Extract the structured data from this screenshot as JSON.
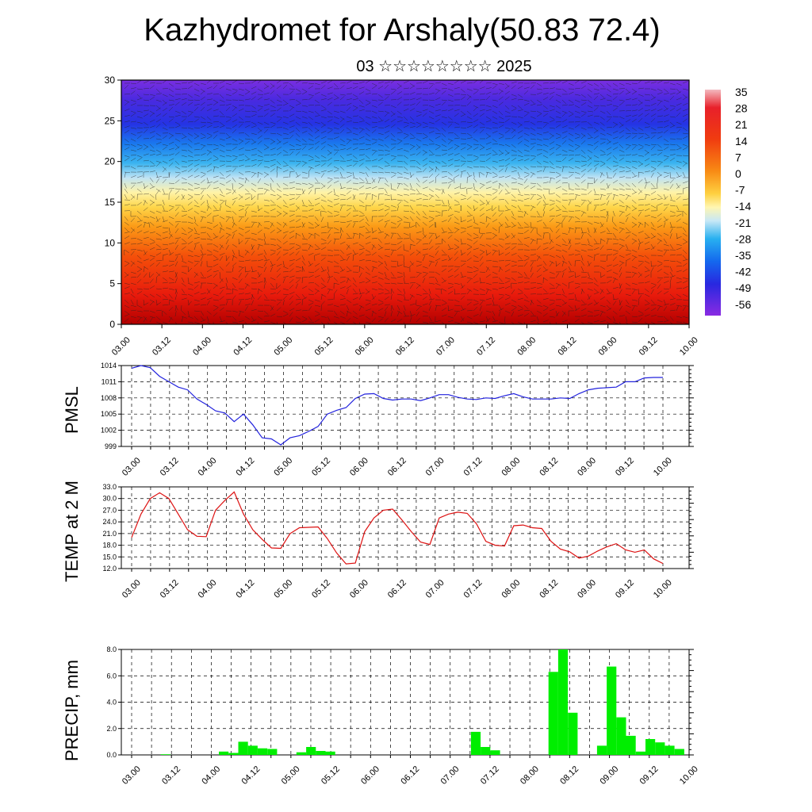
{
  "title": "Kazhydromet for Arshaly(50.83 72.4)",
  "subtitle": "03 ☆☆☆☆☆☆☆☆ 2025",
  "colors": {
    "pmsl_line": "#2222dd",
    "temp_line": "#dd1111",
    "precip_bar": "#00ee00",
    "colorbar_top": "#f3b9bf",
    "colorbar_bottom": "#8a2be2"
  },
  "time_ticks": [
    "03.00",
    "03.12",
    "04.00",
    "04.12",
    "05.00",
    "05.12",
    "06.00",
    "06.12",
    "07.00",
    "07.12",
    "08.00",
    "08.12",
    "09.00",
    "09.12",
    "10.00"
  ],
  "chart_data": [
    {
      "type": "heatmap",
      "title": "",
      "ylabel": "",
      "ylim": [
        0,
        30
      ],
      "yticks": [
        "0",
        "5",
        "10",
        "15",
        "20",
        "25",
        "30"
      ],
      "x": "time_ticks",
      "colorbar": {
        "labels": [
          "35",
          "28",
          "21",
          "14",
          "7",
          "0",
          "-7",
          "-14",
          "-21",
          "-28",
          "-35",
          "-42",
          "-49",
          "-56"
        ],
        "range": [
          -60,
          38
        ]
      },
      "overlay": "wind barbs",
      "description_levels": {
        "surface": "warm (21 to 35)",
        "mid": "0 to -14 near height 15",
        "top": "cold (-49 to -56) near height 25-30"
      }
    },
    {
      "type": "line",
      "ylabel": "PMSL",
      "ylim": [
        999,
        1014
      ],
      "yticks": [
        "999",
        "1002",
        "1005",
        "1008",
        "1011",
        "1014"
      ],
      "series": [
        {
          "values": [
            1013.5,
            1014,
            1013.6,
            1012,
            1011,
            1010,
            1009.5,
            1007.8,
            1006.8,
            1005.6,
            1005.2,
            1003.6,
            1005,
            1003,
            1000.6,
            1000.4,
            999.3,
            1000.6,
            1001,
            1001.8,
            1002.7,
            1005,
            1005.7,
            1006.2,
            1007.9,
            1008.7,
            1008.8,
            1007.9,
            1007.6,
            1007.8,
            1007.8,
            1007.5,
            1008,
            1008.6,
            1008.6,
            1008.1,
            1007.8,
            1007.7,
            1008,
            1007.9,
            1008.4,
            1008.8,
            1008.2,
            1007.8,
            1007.8,
            1007.8,
            1008,
            1007.9,
            1008.8,
            1009.5,
            1009.8,
            1009.9,
            1010,
            1011,
            1011,
            1011.7,
            1011.8,
            1011.8
          ]
        }
      ]
    },
    {
      "type": "line",
      "ylabel": "TEMP at 2 M",
      "ylim": [
        12,
        33
      ],
      "yticks": [
        "12.0",
        "15.0",
        "18.0",
        "21.0",
        "24.0",
        "27.0",
        "30.0",
        "33.0"
      ],
      "series": [
        {
          "values": [
            20,
            26,
            30,
            31.5,
            30,
            26,
            22,
            20.3,
            20.2,
            27,
            29.5,
            31.7,
            26,
            22,
            19.5,
            17.3,
            17.2,
            21,
            22.5,
            22.6,
            22.7,
            19.7,
            16,
            13.2,
            13.4,
            21.5,
            25,
            27,
            27.3,
            24.5,
            21.5,
            18.8,
            18.2,
            25,
            26,
            26.5,
            26.2,
            23.5,
            19,
            18,
            17.8,
            23,
            23.2,
            22.5,
            22.3,
            19,
            17,
            16.3,
            14.7,
            15.2,
            16.5,
            17.6,
            18.4,
            16.8,
            16.2,
            16.8,
            14.5,
            13.3
          ]
        }
      ]
    },
    {
      "type": "bar",
      "ylabel": "PRECIP, mm",
      "ylim": [
        0,
        8
      ],
      "yticks": [
        "0.0",
        "2.0",
        "4.0",
        "6.0",
        "8.0"
      ],
      "values": [
        0,
        0,
        0,
        0.05,
        0,
        0,
        0,
        0,
        0,
        0.25,
        0.15,
        1.0,
        0.7,
        0.5,
        0.45,
        0,
        0,
        0.2,
        0.6,
        0.3,
        0.25,
        0,
        0,
        0,
        0,
        0,
        0,
        0,
        0,
        0,
        0,
        0,
        0,
        0,
        0,
        1.75,
        0.6,
        0.35,
        0,
        0,
        0,
        0,
        0,
        6.3,
        8.0,
        3.2,
        0,
        0,
        0.7,
        6.7,
        2.85,
        1.45,
        0.25,
        1.2,
        0.95,
        0.7,
        0.45
      ]
    }
  ]
}
